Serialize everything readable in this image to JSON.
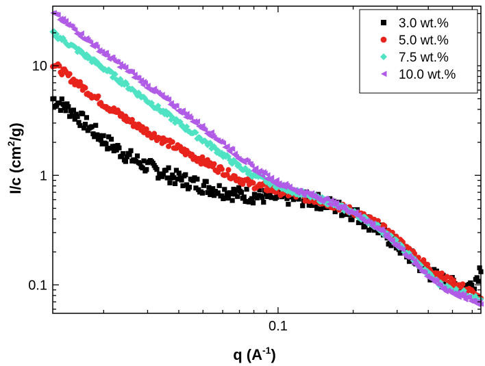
{
  "chart_data": {
    "type": "scatter",
    "title": "",
    "xlabel": {
      "main": "q (A",
      "sup": "-1",
      "tail": ")"
    },
    "ylabel": {
      "main": "I/c (cm",
      "sup": "2",
      "tail": "/g)"
    },
    "xscale": "log",
    "yscale": "log",
    "xlim": [
      0.0125,
      0.65
    ],
    "ylim": [
      0.055,
      35
    ],
    "x_ticks": [
      {
        "value": 0.1,
        "label": "0.1"
      }
    ],
    "y_ticks": [
      {
        "value": 0.1,
        "label": "0.1"
      },
      {
        "value": 1,
        "label": "1"
      },
      {
        "value": 10,
        "label": "10"
      }
    ],
    "grid": false,
    "legend_position": "top-right",
    "series": [
      {
        "name": "3.0 wt.%",
        "color": "#000000",
        "marker": "square",
        "points": [
          [
            0.0125,
            5.0
          ],
          [
            0.015,
            3.8
          ],
          [
            0.02,
            2.1
          ],
          [
            0.025,
            1.5
          ],
          [
            0.03,
            1.2
          ],
          [
            0.04,
            0.93
          ],
          [
            0.05,
            0.8
          ],
          [
            0.06,
            0.72
          ],
          [
            0.07,
            0.67
          ],
          [
            0.08,
            0.65
          ],
          [
            0.1,
            0.63
          ],
          [
            0.12,
            0.62
          ],
          [
            0.15,
            0.57
          ],
          [
            0.2,
            0.45
          ],
          [
            0.25,
            0.33
          ],
          [
            0.3,
            0.23
          ],
          [
            0.35,
            0.17
          ],
          [
            0.4,
            0.13
          ],
          [
            0.45,
            0.11
          ],
          [
            0.5,
            0.1
          ],
          [
            0.55,
            0.095
          ],
          [
            0.6,
            0.1
          ],
          [
            0.63,
            0.12
          ],
          [
            0.65,
            0.15
          ]
        ]
      },
      {
        "name": "5.0 wt.%",
        "color": "#e8231c",
        "marker": "circle",
        "points": [
          [
            0.0125,
            10.5
          ],
          [
            0.015,
            7.5
          ],
          [
            0.02,
            4.5
          ],
          [
            0.025,
            3.2
          ],
          [
            0.03,
            2.5
          ],
          [
            0.04,
            1.75
          ],
          [
            0.05,
            1.35
          ],
          [
            0.06,
            1.1
          ],
          [
            0.07,
            0.92
          ],
          [
            0.08,
            0.82
          ],
          [
            0.1,
            0.72
          ],
          [
            0.12,
            0.65
          ],
          [
            0.15,
            0.58
          ],
          [
            0.2,
            0.47
          ],
          [
            0.25,
            0.36
          ],
          [
            0.3,
            0.26
          ],
          [
            0.35,
            0.19
          ],
          [
            0.4,
            0.145
          ],
          [
            0.45,
            0.12
          ],
          [
            0.5,
            0.105
          ],
          [
            0.55,
            0.095
          ],
          [
            0.6,
            0.085
          ],
          [
            0.65,
            0.07
          ]
        ]
      },
      {
        "name": "7.5 wt.%",
        "color": "#4fe3c4",
        "marker": "diamond",
        "points": [
          [
            0.0125,
            20
          ],
          [
            0.015,
            15
          ],
          [
            0.02,
            9.5
          ],
          [
            0.025,
            6.5
          ],
          [
            0.03,
            4.8
          ],
          [
            0.04,
            3.0
          ],
          [
            0.05,
            2.1
          ],
          [
            0.06,
            1.55
          ],
          [
            0.07,
            1.2
          ],
          [
            0.08,
            1.0
          ],
          [
            0.1,
            0.8
          ],
          [
            0.12,
            0.7
          ],
          [
            0.15,
            0.6
          ],
          [
            0.2,
            0.46
          ],
          [
            0.25,
            0.34
          ],
          [
            0.3,
            0.24
          ],
          [
            0.35,
            0.17
          ],
          [
            0.4,
            0.125
          ],
          [
            0.45,
            0.1
          ],
          [
            0.5,
            0.09
          ],
          [
            0.55,
            0.085
          ],
          [
            0.6,
            0.08
          ],
          [
            0.65,
            0.07
          ]
        ]
      },
      {
        "name": "10.0 wt.%",
        "color": "#b05ce6",
        "marker": "triangle",
        "points": [
          [
            0.0125,
            30
          ],
          [
            0.015,
            22
          ],
          [
            0.02,
            13
          ],
          [
            0.025,
            9.0
          ],
          [
            0.03,
            6.5
          ],
          [
            0.04,
            4.0
          ],
          [
            0.05,
            2.7
          ],
          [
            0.06,
            1.95
          ],
          [
            0.07,
            1.45
          ],
          [
            0.08,
            1.15
          ],
          [
            0.1,
            0.85
          ],
          [
            0.12,
            0.72
          ],
          [
            0.15,
            0.61
          ],
          [
            0.2,
            0.46
          ],
          [
            0.25,
            0.33
          ],
          [
            0.3,
            0.23
          ],
          [
            0.35,
            0.16
          ],
          [
            0.4,
            0.12
          ],
          [
            0.45,
            0.095
          ],
          [
            0.5,
            0.085
          ],
          [
            0.55,
            0.078
          ],
          [
            0.6,
            0.072
          ],
          [
            0.65,
            0.068
          ]
        ]
      }
    ]
  }
}
